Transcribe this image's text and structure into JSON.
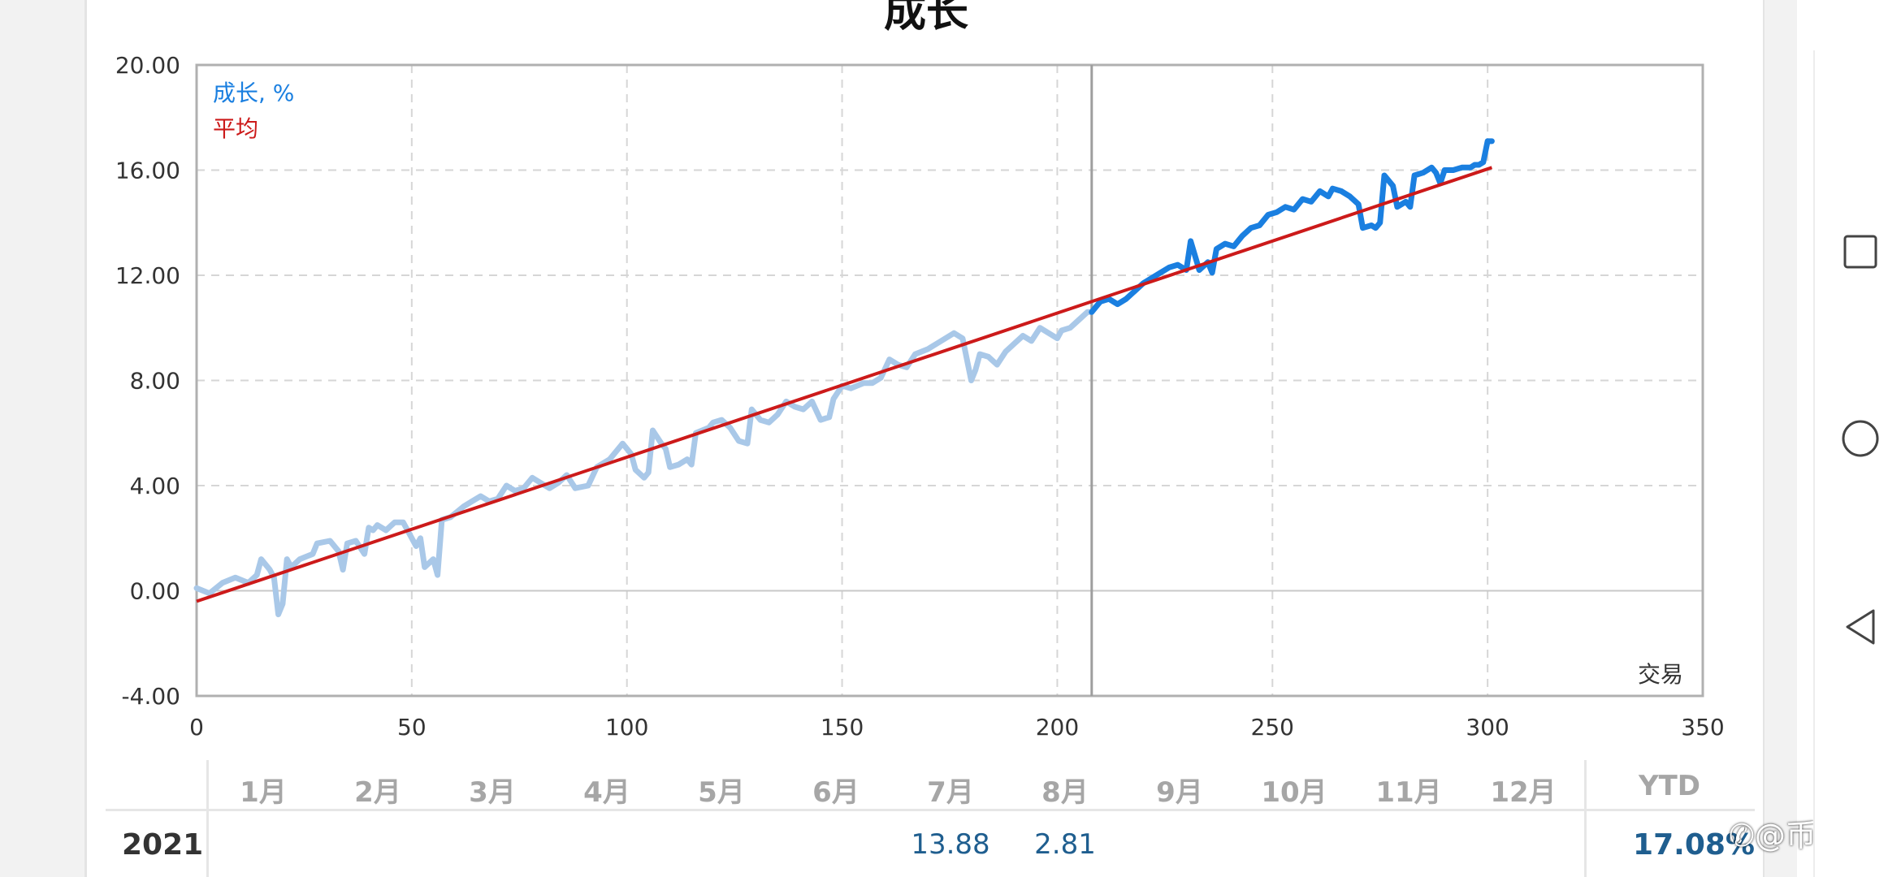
{
  "chart_data": {
    "type": "line",
    "title": "成长",
    "xlabel": "交易",
    "ylabel": "",
    "xlim": [
      0,
      350
    ],
    "ylim": [
      -4,
      20
    ],
    "x_ticks": [
      "0",
      "50",
      "100",
      "150",
      "200",
      "250",
      "300",
      "350"
    ],
    "y_ticks": [
      "-4.00",
      "0.00",
      "4.00",
      "8.00",
      "12.00",
      "16.00",
      "20.00"
    ],
    "grid": true,
    "legend_position": "top-left",
    "marker_x": 208,
    "series": [
      {
        "name": "成长, %",
        "color": "#1a7fe0",
        "faded_color": "#a9c8e8",
        "points": [
          [
            0,
            0.1
          ],
          [
            3,
            -0.1
          ],
          [
            6,
            0.3
          ],
          [
            9,
            0.5
          ],
          [
            12,
            0.3
          ],
          [
            14,
            0.6
          ],
          [
            15,
            1.2
          ],
          [
            17,
            0.8
          ],
          [
            18,
            0.5
          ],
          [
            19,
            -0.9
          ],
          [
            20,
            -0.5
          ],
          [
            21,
            1.2
          ],
          [
            22,
            0.9
          ],
          [
            24,
            1.2
          ],
          [
            27,
            1.4
          ],
          [
            28,
            1.8
          ],
          [
            31,
            1.9
          ],
          [
            33,
            1.5
          ],
          [
            34,
            0.8
          ],
          [
            35,
            1.8
          ],
          [
            37,
            1.9
          ],
          [
            39,
            1.4
          ],
          [
            40,
            2.4
          ],
          [
            41,
            2.3
          ],
          [
            42,
            2.5
          ],
          [
            44,
            2.3
          ],
          [
            46,
            2.6
          ],
          [
            48,
            2.6
          ],
          [
            49,
            2.3
          ],
          [
            51,
            1.7
          ],
          [
            52,
            2.0
          ],
          [
            53,
            0.9
          ],
          [
            55,
            1.2
          ],
          [
            56,
            0.6
          ],
          [
            57,
            2.7
          ],
          [
            59,
            2.8
          ],
          [
            62,
            3.2
          ],
          [
            64,
            3.4
          ],
          [
            66,
            3.6
          ],
          [
            68,
            3.4
          ],
          [
            70,
            3.5
          ],
          [
            72,
            4.0
          ],
          [
            74,
            3.8
          ],
          [
            76,
            3.9
          ],
          [
            78,
            4.3
          ],
          [
            80,
            4.1
          ],
          [
            82,
            3.9
          ],
          [
            84,
            4.1
          ],
          [
            86,
            4.4
          ],
          [
            88,
            3.9
          ],
          [
            91,
            4.0
          ],
          [
            93,
            4.7
          ],
          [
            96,
            5.0
          ],
          [
            99,
            5.6
          ],
          [
            101,
            5.2
          ],
          [
            102,
            4.6
          ],
          [
            104,
            4.3
          ],
          [
            105,
            4.5
          ],
          [
            106,
            6.1
          ],
          [
            108,
            5.6
          ],
          [
            109,
            5.4
          ],
          [
            110,
            4.7
          ],
          [
            112,
            4.8
          ],
          [
            114,
            5.0
          ],
          [
            115,
            4.8
          ],
          [
            116,
            6.0
          ],
          [
            119,
            6.2
          ],
          [
            120,
            6.4
          ],
          [
            122,
            6.5
          ],
          [
            124,
            6.2
          ],
          [
            126,
            5.7
          ],
          [
            128,
            5.6
          ],
          [
            129,
            6.9
          ],
          [
            131,
            6.5
          ],
          [
            133,
            6.4
          ],
          [
            135,
            6.7
          ],
          [
            137,
            7.2
          ],
          [
            139,
            7.0
          ],
          [
            141,
            6.9
          ],
          [
            143,
            7.2
          ],
          [
            145,
            6.5
          ],
          [
            147,
            6.6
          ],
          [
            148,
            7.3
          ],
          [
            150,
            7.8
          ],
          [
            152,
            7.7
          ],
          [
            155,
            7.9
          ],
          [
            157,
            7.9
          ],
          [
            159,
            8.1
          ],
          [
            161,
            8.8
          ],
          [
            163,
            8.6
          ],
          [
            165,
            8.5
          ],
          [
            167,
            9.0
          ],
          [
            170,
            9.2
          ],
          [
            172,
            9.4
          ],
          [
            174,
            9.6
          ],
          [
            176,
            9.8
          ],
          [
            178,
            9.6
          ],
          [
            180,
            8.0
          ],
          [
            181,
            8.4
          ],
          [
            182,
            9.0
          ],
          [
            184,
            8.9
          ],
          [
            186,
            8.6
          ],
          [
            188,
            9.1
          ],
          [
            190,
            9.4
          ],
          [
            192,
            9.7
          ],
          [
            194,
            9.5
          ],
          [
            196,
            10.0
          ],
          [
            198,
            9.8
          ],
          [
            200,
            9.6
          ],
          [
            201,
            9.9
          ],
          [
            203,
            10.0
          ],
          [
            205,
            10.3
          ],
          [
            207,
            10.6
          ],
          [
            208,
            10.6
          ],
          [
            210,
            11.0
          ],
          [
            212,
            11.1
          ],
          [
            214,
            10.9
          ],
          [
            216,
            11.1
          ],
          [
            218,
            11.4
          ],
          [
            220,
            11.7
          ],
          [
            222,
            11.9
          ],
          [
            224,
            12.1
          ],
          [
            226,
            12.3
          ],
          [
            228,
            12.4
          ],
          [
            230,
            12.2
          ],
          [
            231,
            13.3
          ],
          [
            233,
            12.2
          ],
          [
            235,
            12.5
          ],
          [
            236,
            12.1
          ],
          [
            237,
            13.0
          ],
          [
            239,
            13.2
          ],
          [
            241,
            13.1
          ],
          [
            243,
            13.5
          ],
          [
            245,
            13.8
          ],
          [
            247,
            13.9
          ],
          [
            249,
            14.3
          ],
          [
            251,
            14.4
          ],
          [
            253,
            14.6
          ],
          [
            255,
            14.5
          ],
          [
            257,
            14.9
          ],
          [
            259,
            14.8
          ],
          [
            261,
            15.2
          ],
          [
            263,
            15.0
          ],
          [
            264,
            15.3
          ],
          [
            266,
            15.2
          ],
          [
            268,
            15.0
          ],
          [
            270,
            14.7
          ],
          [
            271,
            13.8
          ],
          [
            273,
            13.9
          ],
          [
            274,
            13.8
          ],
          [
            275,
            14.0
          ],
          [
            276,
            15.8
          ],
          [
            278,
            15.4
          ],
          [
            279,
            14.6
          ],
          [
            281,
            14.8
          ],
          [
            282,
            14.6
          ],
          [
            283,
            15.8
          ],
          [
            285,
            15.9
          ],
          [
            287,
            16.1
          ],
          [
            288,
            15.9
          ],
          [
            289,
            15.5
          ],
          [
            290,
            16.0
          ],
          [
            292,
            16.0
          ],
          [
            294,
            16.1
          ],
          [
            296,
            16.1
          ],
          [
            297,
            16.2
          ],
          [
            298,
            16.2
          ],
          [
            299,
            16.3
          ],
          [
            300,
            17.1
          ],
          [
            301,
            17.1
          ]
        ]
      },
      {
        "name": "平均",
        "color": "#cc1a1a",
        "points": [
          [
            0,
            -0.4
          ],
          [
            301,
            16.1
          ]
        ]
      }
    ]
  },
  "table": {
    "months": [
      "1月",
      "2月",
      "3月",
      "4月",
      "5月",
      "6月",
      "7月",
      "8月",
      "9月",
      "10月",
      "11月",
      "12月"
    ],
    "ytd_label": "YTD",
    "year": "2021",
    "values": [
      {
        "month_index": 6,
        "value": "13.88"
      },
      {
        "month_index": 7,
        "value": "2.81"
      }
    ],
    "ytd_value": "17.08%"
  },
  "watermark": "@币胜客",
  "watermark_icon": "weibo-icon",
  "nav_icons": [
    "recent-apps-icon",
    "home-icon",
    "back-icon"
  ]
}
